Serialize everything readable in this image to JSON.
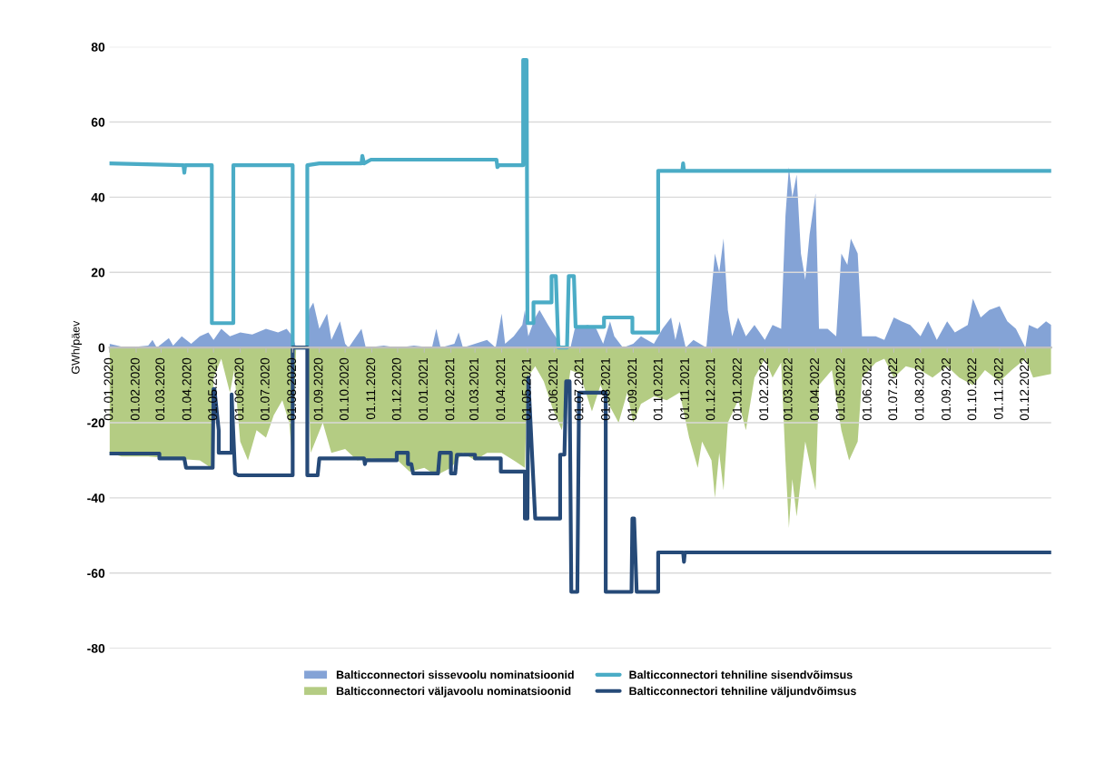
{
  "chart_data": {
    "type": "area",
    "ylabel": "GWh/päev",
    "ylim": [
      -80,
      80
    ],
    "yticks": [
      -80,
      -60,
      -40,
      -20,
      0,
      20,
      40,
      60,
      80
    ],
    "grid": "y",
    "legend": "bottom",
    "xlim": [
      "2020-01-01",
      "2022-12-31"
    ],
    "xticks": [
      {
        "value": "2020-01-01",
        "label": "01.01.2020"
      },
      {
        "value": "2020-02-01",
        "label": "01.02.2020"
      },
      {
        "value": "2020-03-01",
        "label": "01.03.2020"
      },
      {
        "value": "2020-04-01",
        "label": "01.04.2020"
      },
      {
        "value": "2020-05-01",
        "label": "01.05.2020"
      },
      {
        "value": "2020-06-01",
        "label": "01.06.2020"
      },
      {
        "value": "2020-07-01",
        "label": "01.07.2020"
      },
      {
        "value": "2020-08-01",
        "label": "01.08.2020"
      },
      {
        "value": "2020-09-01",
        "label": "01.09.2020"
      },
      {
        "value": "2020-10-01",
        "label": "01.10.2020"
      },
      {
        "value": "2020-11-01",
        "label": "01.11.2020"
      },
      {
        "value": "2020-12-01",
        "label": "01.12.2020"
      },
      {
        "value": "2021-01-01",
        "label": "01.01.2021"
      },
      {
        "value": "2021-02-01",
        "label": "01.02.2021"
      },
      {
        "value": "2021-03-01",
        "label": "01.03.2021"
      },
      {
        "value": "2021-04-01",
        "label": "01.04.2021"
      },
      {
        "value": "2021-05-01",
        "label": "01.05.2021"
      },
      {
        "value": "2021-06-01",
        "label": "01.06.2021"
      },
      {
        "value": "2021-07-01",
        "label": "01.07.2021"
      },
      {
        "value": "2021-08-01",
        "label": "01.08.2021"
      },
      {
        "value": "2021-09-01",
        "label": "01.09.2021"
      },
      {
        "value": "2021-10-01",
        "label": "01.10.2021"
      },
      {
        "value": "2021-11-01",
        "label": "01.11.2021"
      },
      {
        "value": "2021-12-01",
        "label": "01.12.2021"
      },
      {
        "value": "2022-01-01",
        "label": "01.01.2022"
      },
      {
        "value": "2022-02-01",
        "label": "01.02.2022"
      },
      {
        "value": "2022-03-01",
        "label": "01.03.2022"
      },
      {
        "value": "2022-04-01",
        "label": "01.04.2022"
      },
      {
        "value": "2022-05-01",
        "label": "01.05.2022"
      },
      {
        "value": "2022-06-01",
        "label": "01.06.2022"
      },
      {
        "value": "2022-07-01",
        "label": "01.07.2022"
      },
      {
        "value": "2022-08-01",
        "label": "01.08.2022"
      },
      {
        "value": "2022-09-01",
        "label": "01.09.2022"
      },
      {
        "value": "2022-10-01",
        "label": "01.10.2022"
      },
      {
        "value": "2022-11-01",
        "label": "01.11.2022"
      },
      {
        "value": "2022-12-01",
        "label": "01.12.2022"
      }
    ],
    "series": [
      {
        "name": "Balticconnectori sissevoolu nominatsioonid",
        "color": "#5b84c8",
        "x": [
          "2020-01-01",
          "2020-01-10",
          "2020-01-20",
          "2020-02-15",
          "2020-02-20",
          "2020-02-25",
          "2020-03-10",
          "2020-03-15",
          "2020-03-25",
          "2020-04-05",
          "2020-04-15",
          "2020-04-25",
          "2020-05-01",
          "2020-05-10",
          "2020-05-20",
          "2020-06-01",
          "2020-06-15",
          "2020-07-01",
          "2020-07-15",
          "2020-07-25",
          "2020-08-01",
          "2020-08-05",
          "2020-08-18",
          "2020-08-20",
          "2020-08-25",
          "2020-09-01",
          "2020-09-10",
          "2020-09-15",
          "2020-09-25",
          "2020-10-01",
          "2020-10-05",
          "2020-10-20",
          "2020-10-25",
          "2020-11-15",
          "2020-12-01",
          "2020-12-20",
          "2021-01-10",
          "2021-01-15",
          "2021-01-20",
          "2021-02-05",
          "2021-02-10",
          "2021-02-15",
          "2021-03-15",
          "2021-03-25",
          "2021-04-01",
          "2021-04-05",
          "2021-04-15",
          "2021-04-25",
          "2021-04-28",
          "2021-05-02",
          "2021-05-10",
          "2021-05-15",
          "2021-05-25",
          "2021-06-05",
          "2021-06-10",
          "2021-06-20",
          "2021-06-25",
          "2021-07-10",
          "2021-07-20",
          "2021-07-28",
          "2021-08-05",
          "2021-08-10",
          "2021-08-20",
          "2021-09-01",
          "2021-09-10",
          "2021-09-25",
          "2021-10-05",
          "2021-10-15",
          "2021-10-20",
          "2021-10-25",
          "2021-11-01",
          "2021-11-10",
          "2021-11-25",
          "2021-12-01",
          "2021-12-05",
          "2021-12-10",
          "2021-12-15",
          "2021-12-20",
          "2021-12-25",
          "2022-01-01",
          "2022-01-10",
          "2022-01-20",
          "2022-02-01",
          "2022-02-10",
          "2022-02-20",
          "2022-02-25",
          "2022-03-01",
          "2022-03-05",
          "2022-03-10",
          "2022-03-15",
          "2022-03-20",
          "2022-03-25",
          "2022-04-01",
          "2022-04-05",
          "2022-04-15",
          "2022-04-25",
          "2022-05-01",
          "2022-05-08",
          "2022-05-12",
          "2022-05-20",
          "2022-05-25",
          "2022-06-10",
          "2022-06-20",
          "2022-07-01",
          "2022-07-10",
          "2022-07-20",
          "2022-08-01",
          "2022-08-10",
          "2022-08-20",
          "2022-09-01",
          "2022-09-10",
          "2022-09-25",
          "2022-10-01",
          "2022-10-10",
          "2022-10-20",
          "2022-11-01",
          "2022-11-10",
          "2022-11-20",
          "2022-12-01",
          "2022-12-05",
          "2022-12-15",
          "2022-12-25",
          "2022-12-31"
        ],
        "values": [
          1,
          0.5,
          0,
          0.5,
          2,
          0,
          2.5,
          0.5,
          3,
          1,
          3,
          4,
          2,
          5,
          3,
          4,
          3.5,
          5,
          4,
          5,
          3,
          0,
          0,
          10,
          12,
          5,
          9,
          2,
          7,
          1,
          0,
          5,
          0,
          0.5,
          0,
          0.5,
          0,
          5,
          0,
          1,
          4,
          0,
          2,
          0,
          9,
          1,
          3,
          6,
          10,
          3,
          8,
          10,
          6,
          2,
          0,
          0,
          5,
          6,
          5,
          1,
          7,
          3,
          0,
          1,
          3,
          1,
          5,
          8,
          2,
          7,
          0,
          2,
          0,
          15,
          25,
          20,
          29,
          10,
          3,
          8,
          3,
          6,
          2,
          6,
          5,
          35,
          48,
          40,
          46,
          25,
          18,
          30,
          41,
          5,
          5,
          3,
          25,
          22,
          29,
          25,
          3,
          3,
          2,
          8,
          7,
          6,
          3,
          7,
          2,
          7,
          4,
          6,
          13,
          8,
          10,
          11,
          7,
          5,
          0,
          6,
          5,
          7,
          6
        ]
      },
      {
        "name": "Balticconnectori väljavoolu nominatsioonid",
        "color": "#9bbb59",
        "x": [
          "2020-01-01",
          "2020-01-15",
          "2020-02-15",
          "2020-03-15",
          "2020-04-15",
          "2020-04-28",
          "2020-05-01",
          "2020-05-10",
          "2020-05-20",
          "2020-05-25",
          "2020-06-01",
          "2020-06-10",
          "2020-06-20",
          "2020-07-01",
          "2020-07-10",
          "2020-07-20",
          "2020-07-28",
          "2020-08-01",
          "2020-08-05",
          "2020-08-18",
          "2020-08-22",
          "2020-09-05",
          "2020-09-15",
          "2020-10-01",
          "2020-10-15",
          "2020-11-01",
          "2020-12-01",
          "2020-12-15",
          "2021-01-01",
          "2021-01-15",
          "2021-02-01",
          "2021-02-15",
          "2021-03-01",
          "2021-03-15",
          "2021-04-01",
          "2021-04-15",
          "2021-04-28",
          "2021-05-01",
          "2021-05-10",
          "2021-05-20",
          "2021-05-30",
          "2021-06-10",
          "2021-06-20",
          "2021-07-01",
          "2021-07-15",
          "2021-07-25",
          "2021-08-01",
          "2021-08-15",
          "2021-08-25",
          "2021-09-01",
          "2021-09-10",
          "2021-09-25",
          "2021-10-10",
          "2021-10-25",
          "2021-11-05",
          "2021-11-15",
          "2021-11-20",
          "2021-12-01",
          "2021-12-05",
          "2021-12-10",
          "2021-12-15",
          "2021-12-20",
          "2022-01-01",
          "2022-01-10",
          "2022-01-20",
          "2022-02-01",
          "2022-02-10",
          "2022-02-20",
          "2022-02-25",
          "2022-03-01",
          "2022-03-05",
          "2022-03-10",
          "2022-03-20",
          "2022-04-01",
          "2022-04-05",
          "2022-04-20",
          "2022-05-01",
          "2022-05-10",
          "2022-05-20",
          "2022-05-25",
          "2022-06-10",
          "2022-06-20",
          "2022-07-01",
          "2022-07-15",
          "2022-08-01",
          "2022-08-15",
          "2022-09-01",
          "2022-09-15",
          "2022-10-01",
          "2022-10-15",
          "2022-11-01",
          "2022-11-15",
          "2022-12-01",
          "2022-12-10",
          "2022-12-31"
        ],
        "values": [
          -28,
          -29,
          -29,
          -29.5,
          -30,
          -32,
          -8,
          -3,
          -12,
          -6,
          -25,
          -30,
          -22,
          -24,
          -18,
          -14,
          -20,
          -31,
          0,
          0,
          -28,
          -20,
          -28,
          -27,
          -30,
          -29.5,
          -30,
          -33,
          -32,
          -34,
          -32,
          -28,
          -30,
          -28,
          -28,
          -30,
          -32,
          -8,
          -5,
          -9,
          -16,
          -22,
          -6,
          -7,
          -17,
          -10,
          -14,
          -20,
          -12,
          -20,
          -15,
          -13,
          -14,
          -12,
          -24,
          -32,
          -25,
          -30,
          -40,
          -28,
          -38,
          -20,
          -14,
          -22,
          -8,
          -3,
          -8,
          -4,
          -30,
          -48,
          -35,
          -45,
          -25,
          -38,
          -10,
          -6,
          -22,
          -30,
          -25,
          -8,
          -4,
          -3,
          -8,
          -5,
          -6,
          -8,
          -5,
          -8,
          -10,
          -6,
          -9,
          -6,
          -3,
          -8,
          -7
        ]
      },
      {
        "name": "Balticconnectori tehniline sisendvõimsus",
        "type": "line",
        "color": "#4bacc6",
        "x": [
          "2020-01-01",
          "2020-03-27",
          "2020-03-28",
          "2020-03-29",
          "2020-04-29",
          "2020-04-29",
          "2020-05-24",
          "2020-05-24",
          "2020-08-01",
          "2020-08-01",
          "2020-08-18",
          "2020-08-18",
          "2020-09-01",
          "2020-10-20",
          "2020-10-21",
          "2020-10-23",
          "2020-10-31",
          "2021-03-26",
          "2021-03-27",
          "2021-03-29",
          "2021-04-26",
          "2021-04-26",
          "2021-04-30",
          "2021-05-01",
          "2021-05-08",
          "2021-05-08",
          "2021-05-29",
          "2021-05-29",
          "2021-06-03",
          "2021-06-06",
          "2021-06-16",
          "2021-06-18",
          "2021-06-24",
          "2021-06-26",
          "2021-07-29",
          "2021-07-29",
          "2021-08-31",
          "2021-08-31",
          "2021-09-30",
          "2021-09-30",
          "2021-10-28",
          "2021-10-29",
          "2021-10-30",
          "2022-12-31"
        ],
        "values": [
          49,
          48.5,
          46.5,
          48.5,
          48.5,
          6.5,
          6.5,
          48.5,
          48.5,
          0,
          0,
          48.5,
          49,
          49,
          51,
          49,
          50,
          50,
          48,
          48.5,
          48.5,
          76.5,
          76.5,
          6.5,
          6.5,
          12,
          12,
          19,
          19,
          0,
          0,
          19,
          19,
          5.5,
          5.5,
          8,
          8,
          4,
          4,
          47,
          47,
          49,
          47,
          47
        ]
      },
      {
        "name": "Balticconnectori tehniline väljundvõimsus",
        "type": "line",
        "color": "#264a78",
        "x": [
          "2020-01-01",
          "2020-02-28",
          "2020-02-28",
          "2020-03-28",
          "2020-03-30",
          "2020-04-30",
          "2020-05-01",
          "2020-05-02",
          "2020-05-07",
          "2020-05-07",
          "2020-05-22",
          "2020-05-22",
          "2020-05-26",
          "2020-05-30",
          "2020-08-01",
          "2020-08-01",
          "2020-08-18",
          "2020-08-18",
          "2020-08-30",
          "2020-09-01",
          "2020-10-23",
          "2020-10-24",
          "2020-10-25",
          "2020-11-30",
          "2020-11-30",
          "2020-12-13",
          "2020-12-13",
          "2020-12-17",
          "2020-12-19",
          "2021-01-17",
          "2021-01-19",
          "2021-02-01",
          "2021-02-01",
          "2021-02-06",
          "2021-02-08",
          "2021-03-01",
          "2021-03-01",
          "2021-03-31",
          "2021-03-31",
          "2021-04-28",
          "2021-04-28",
          "2021-05-01",
          "2021-05-02",
          "2021-05-10",
          "2021-06-08",
          "2021-06-08",
          "2021-06-13",
          "2021-06-15",
          "2021-06-19",
          "2021-06-21",
          "2021-06-28",
          "2021-06-30",
          "2021-07-31",
          "2021-07-31",
          "2021-08-30",
          "2021-08-31",
          "2021-09-02",
          "2021-09-05",
          "2021-09-30",
          "2021-09-30",
          "2021-10-29",
          "2021-10-30",
          "2021-10-31",
          "2022-12-31"
        ],
        "values": [
          -28.2,
          -28.2,
          -29.5,
          -29.5,
          -32,
          -32,
          -11,
          -11,
          -22,
          -28,
          -28,
          -12.5,
          -33.5,
          -34,
          -34,
          0,
          0,
          -34,
          -34,
          -29.5,
          -29.5,
          -31,
          -30,
          -30,
          -28,
          -28,
          -31,
          -31,
          -33.5,
          -33.5,
          -28,
          -28,
          -33.5,
          -33.5,
          -28.5,
          -28.5,
          -29.5,
          -29.5,
          -33,
          -33,
          -45.5,
          -45.5,
          -8,
          -45.5,
          -45.5,
          -28.5,
          -28.5,
          -9,
          -9,
          -65,
          -65,
          -12,
          -12,
          -65,
          -65,
          -45.5,
          -45.5,
          -65,
          -65,
          -54.5,
          -54.5,
          -57,
          -54.5,
          -54.5
        ]
      }
    ]
  }
}
